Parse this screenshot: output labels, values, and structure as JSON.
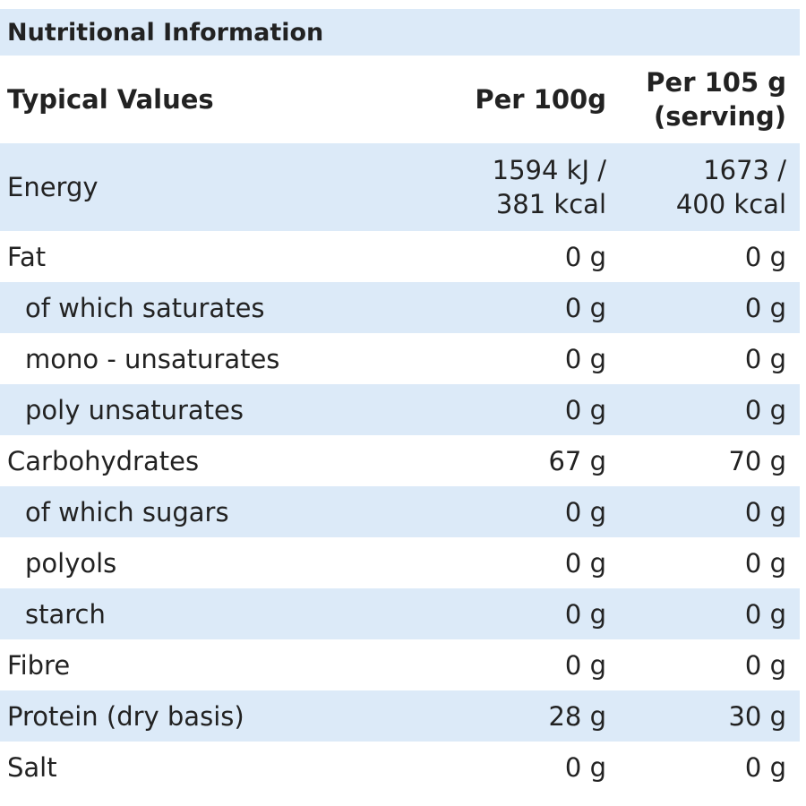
{
  "table": {
    "title": "Nutritional Information",
    "header": {
      "label": "Typical Values",
      "per_100g": [
        "Per 100g"
      ],
      "per_serving": [
        "Per 105 g",
        "(serving)"
      ]
    },
    "nutrients": [
      {
        "label": "Energy",
        "per_100g": [
          "1594 kJ /",
          "381 kcal"
        ],
        "per_serving": [
          "1673 /",
          "400 kcal"
        ],
        "sub": []
      },
      {
        "label": "Fat",
        "per_100g": [
          "0 g"
        ],
        "per_serving": [
          "0 g"
        ],
        "sub": [
          {
            "label": "of which saturates",
            "per_100g": [
              "0 g"
            ],
            "per_serving": [
              "0 g"
            ]
          },
          {
            "label": "mono - unsaturates",
            "per_100g": [
              "0 g"
            ],
            "per_serving": [
              "0 g"
            ]
          },
          {
            "label": "poly unsaturates",
            "per_100g": [
              "0 g"
            ],
            "per_serving": [
              "0 g"
            ]
          }
        ]
      },
      {
        "label": "Carbohydrates",
        "per_100g": [
          "67 g"
        ],
        "per_serving": [
          "70 g"
        ],
        "sub": [
          {
            "label": "of which sugars",
            "per_100g": [
              "0 g"
            ],
            "per_serving": [
              "0 g"
            ]
          },
          {
            "label": "polyols",
            "per_100g": [
              "0 g"
            ],
            "per_serving": [
              "0 g"
            ]
          },
          {
            "label": "starch",
            "per_100g": [
              "0 g"
            ],
            "per_serving": [
              "0 g"
            ]
          }
        ]
      },
      {
        "label": "Fibre",
        "per_100g": [
          "0 g"
        ],
        "per_serving": [
          "0 g"
        ],
        "sub": []
      },
      {
        "label": "Protein (dry basis)",
        "per_100g": [
          "28 g"
        ],
        "per_serving": [
          "30 g"
        ],
        "sub": []
      },
      {
        "label": "Salt",
        "per_100g": [
          "0 g"
        ],
        "per_serving": [
          "0 g"
        ],
        "sub": []
      }
    ]
  }
}
